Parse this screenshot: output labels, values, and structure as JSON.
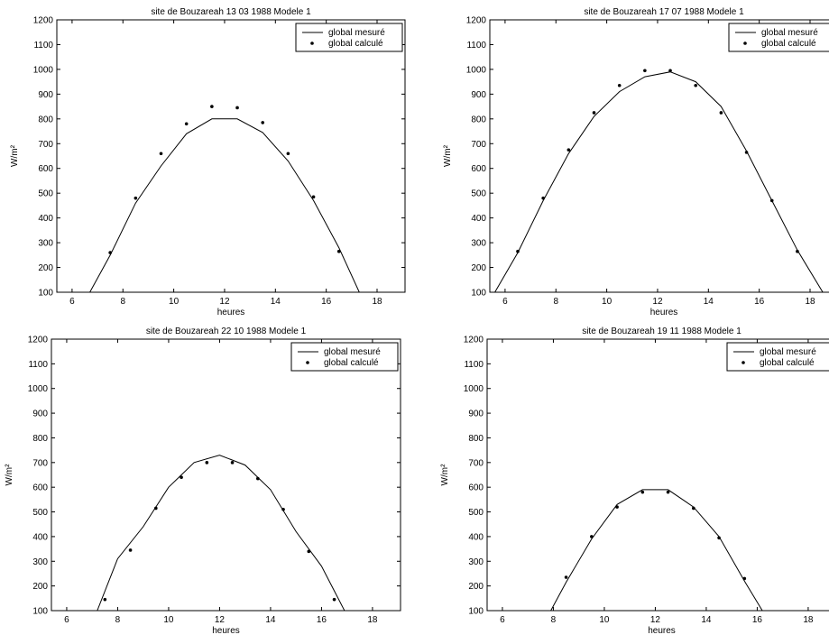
{
  "figure": {
    "common": {
      "xlabel": "heures",
      "ylabel": "W/m²",
      "xticks": [
        6,
        8,
        10,
        12,
        14,
        16,
        18
      ],
      "yticks": [
        100,
        200,
        300,
        400,
        500,
        600,
        700,
        800,
        900,
        1000,
        1100,
        1200
      ],
      "xlim": [
        5.4,
        19.1
      ],
      "ylim": [
        100,
        1200
      ],
      "legend_position": "top-right",
      "legend_measured": "global mesuré",
      "legend_computed": "global calculé",
      "line_color": "#000000",
      "marker_color": "#000000"
    }
  },
  "chart_data": [
    {
      "type": "line",
      "title": "site de Bouzareah 13 03 1988 Modele 1",
      "xlabel": "heures",
      "ylabel": "W/m²",
      "xlim": [
        5.4,
        19.1
      ],
      "ylim": [
        100,
        1200
      ],
      "series": [
        {
          "name": "global mesuré",
          "style": "line",
          "x": [
            6.7,
            7.5,
            8.5,
            9.5,
            10.5,
            11.5,
            12.5,
            13.5,
            14.5,
            15.5,
            16.5,
            17.3
          ],
          "y": [
            100,
            250,
            460,
            610,
            740,
            800,
            800,
            745,
            630,
            470,
            280,
            100
          ]
        },
        {
          "name": "global calculé",
          "style": "markers",
          "x": [
            7.5,
            8.5,
            9.5,
            10.5,
            11.5,
            12.5,
            13.5,
            14.5,
            15.5,
            16.5
          ],
          "y": [
            260,
            480,
            660,
            780,
            850,
            845,
            785,
            660,
            485,
            265
          ]
        }
      ]
    },
    {
      "type": "line",
      "title": "site de Bouzareah 17 07 1988 Modele 1",
      "xlabel": "heures",
      "ylabel": "W/m²",
      "xlim": [
        5.4,
        19.1
      ],
      "ylim": [
        100,
        1200
      ],
      "series": [
        {
          "name": "global mesuré",
          "style": "line",
          "x": [
            5.6,
            6.5,
            7.5,
            8.5,
            9.5,
            10.5,
            11.5,
            12.5,
            13.5,
            14.5,
            15.5,
            16.5,
            17.5,
            18.5
          ],
          "y": [
            100,
            260,
            470,
            660,
            810,
            910,
            970,
            990,
            950,
            850,
            670,
            470,
            270,
            100
          ]
        },
        {
          "name": "global calculé",
          "style": "markers",
          "x": [
            6.5,
            7.5,
            8.5,
            9.5,
            10.5,
            11.5,
            12.5,
            13.5,
            14.5,
            15.5,
            16.5,
            17.5
          ],
          "y": [
            265,
            480,
            675,
            825,
            935,
            995,
            995,
            935,
            825,
            665,
            470,
            265
          ]
        }
      ]
    },
    {
      "type": "line",
      "title": "site de Bouzareah 22 10 1988 Modele 1",
      "xlabel": "heures",
      "ylabel": "W/m²",
      "xlim": [
        5.4,
        19.1
      ],
      "ylim": [
        100,
        1200
      ],
      "series": [
        {
          "name": "global mesuré",
          "style": "line",
          "x": [
            7.2,
            8.0,
            9.0,
            10.0,
            10.5,
            11.0,
            12.0,
            13.0,
            14.0,
            15.0,
            16.0,
            16.5,
            16.9
          ],
          "y": [
            100,
            310,
            440,
            600,
            650,
            700,
            730,
            690,
            590,
            420,
            280,
            180,
            100
          ]
        },
        {
          "name": "global calculé",
          "style": "markers",
          "x": [
            7.5,
            8.5,
            9.5,
            10.5,
            11.5,
            12.5,
            13.5,
            14.5,
            15.5,
            16.5
          ],
          "y": [
            145,
            345,
            515,
            640,
            700,
            700,
            635,
            510,
            340,
            145
          ]
        }
      ]
    },
    {
      "type": "line",
      "title": "site de Bouzareah 19 11 1988 Modele 1",
      "xlabel": "heures",
      "ylabel": "W/m²",
      "xlim": [
        5.4,
        19.1
      ],
      "ylim": [
        100,
        1200
      ],
      "series": [
        {
          "name": "global mesuré",
          "style": "line",
          "x": [
            7.9,
            8.5,
            9.5,
            10.5,
            11.5,
            12.5,
            13.5,
            14.5,
            15.5,
            16.2
          ],
          "y": [
            100,
            215,
            390,
            530,
            590,
            590,
            520,
            400,
            220,
            100
          ]
        },
        {
          "name": "global calculé",
          "style": "markers",
          "x": [
            8.5,
            9.5,
            10.5,
            11.5,
            12.5,
            13.5,
            14.5,
            15.5
          ],
          "y": [
            235,
            400,
            520,
            580,
            580,
            515,
            395,
            230
          ]
        }
      ]
    }
  ]
}
